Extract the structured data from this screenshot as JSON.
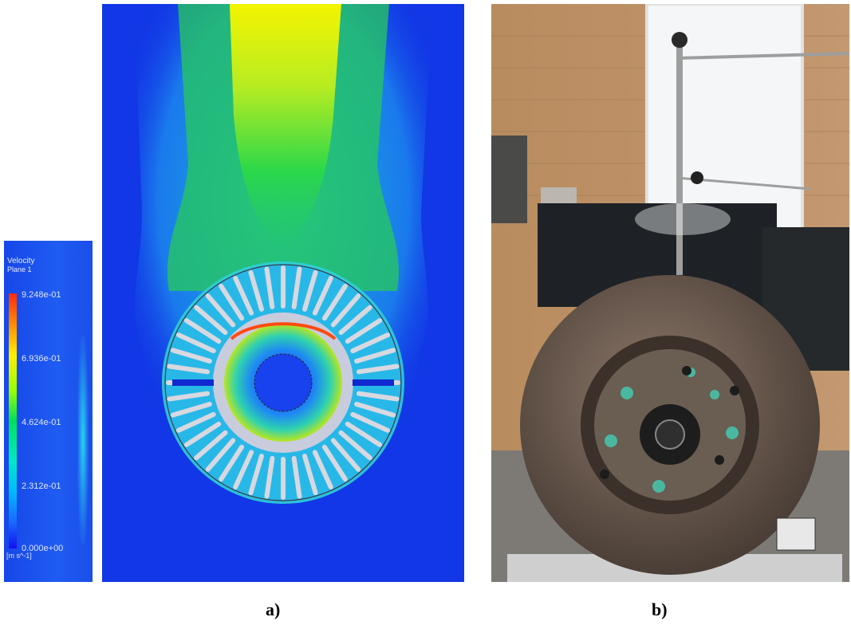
{
  "legend": {
    "title": "Velocity",
    "subtitle": "Plane 1",
    "ticks": [
      "9.248e-01",
      "6.936e-01",
      "4.624e-01",
      "2.312e-01",
      "0.000e+00"
    ],
    "unit": "[m s^-1]"
  },
  "captions": {
    "a": "a)",
    "b": "b)"
  },
  "colors": {
    "cfd_background": "#1237e6",
    "velocity_max": "#ff2a10",
    "velocity_min": "#1111ee"
  },
  "icons": {
    "cfd": "cfd-velocity-contour-plot",
    "photo": "brake-disc-test-rig-photo"
  }
}
